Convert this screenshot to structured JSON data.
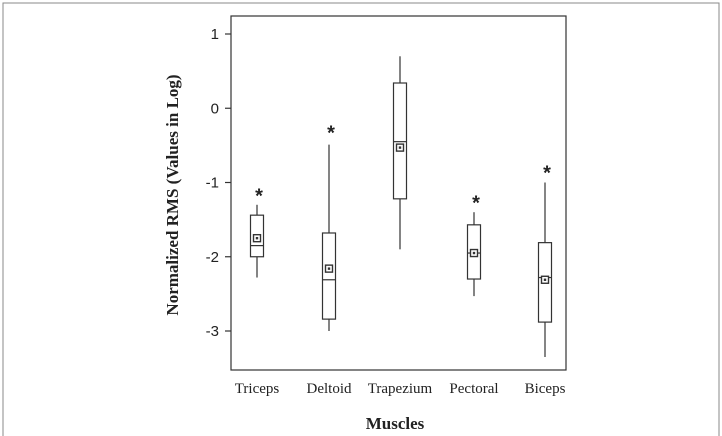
{
  "chart_data": {
    "type": "boxplot",
    "title": "",
    "xlabel": "Muscles",
    "ylabel": "Normalized RMS (Values in Log)",
    "ylim": [
      -3.4,
      1.1
    ],
    "yticks": [
      1,
      0,
      -1,
      -2,
      -3
    ],
    "ytick_labels": [
      "1",
      "0",
      "-1",
      "-2",
      "-3"
    ],
    "grid": false,
    "legend": "none",
    "outlier_marker": "*",
    "categories": [
      "Triceps",
      "Deltoid",
      "Trapezium",
      "Pectoral",
      "Biceps"
    ],
    "boxes": [
      {
        "name": "Triceps",
        "whisker_low": -2.28,
        "q1": -2.0,
        "median": -1.85,
        "q3": -1.44,
        "whisker_high": -1.3,
        "mean": -1.75,
        "outlier": -1.15
      },
      {
        "name": "Deltoid",
        "whisker_low": -3.0,
        "q1": -2.84,
        "median": -2.31,
        "q3": -1.68,
        "whisker_high": -0.49,
        "mean": -2.16,
        "outlier": -0.3
      },
      {
        "name": "Trapezium",
        "whisker_low": -1.9,
        "q1": -1.22,
        "median": -0.45,
        "q3": 0.34,
        "whisker_high": 0.7,
        "mean": -0.53,
        "outlier": null
      },
      {
        "name": "Pectoral",
        "whisker_low": -2.53,
        "q1": -2.3,
        "median": -1.95,
        "q3": -1.57,
        "whisker_high": -1.4,
        "mean": -1.95,
        "outlier": -1.24
      },
      {
        "name": "Biceps",
        "whisker_low": -3.35,
        "q1": -2.88,
        "median": -2.28,
        "q3": -1.81,
        "whisker_high": -1.0,
        "mean": -2.31,
        "outlier": -0.84
      }
    ]
  }
}
